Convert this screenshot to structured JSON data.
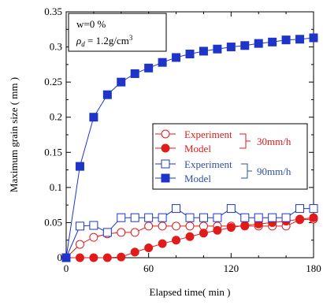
{
  "chart_data": {
    "type": "line",
    "xlabel": "Elapsed time( min )",
    "ylabel": "Maximum grain size ( mm )",
    "xlim": [
      0,
      180
    ],
    "ylim": [
      0,
      0.35
    ],
    "xticks": [
      0,
      60,
      120,
      180
    ],
    "yticks": [
      0,
      0.05,
      0.1,
      0.15,
      0.2,
      0.25,
      0.3,
      0.35
    ],
    "xtick_labels": [
      "0",
      "60",
      "120",
      "180"
    ],
    "ytick_labels": [
      "0",
      "0.05",
      "0.1",
      "0.15",
      "0.2",
      "0.25",
      "0.3",
      "0.35"
    ],
    "grid": false,
    "legend_position": "right-center",
    "annotation": {
      "line1": "w=0 %",
      "line2_symbol": "ρ",
      "line2_sub": "d",
      "line2_value": " = 1.2g/cm",
      "line2_sup": "3"
    },
    "groups": [
      {
        "label": "30mm/h",
        "color": "#e11a1a"
      },
      {
        "label": "90mm/h",
        "color": "#2e4fa6"
      }
    ],
    "series": [
      {
        "name": "Experiment",
        "group": 0,
        "color": "#e11a1a",
        "marker": "circle",
        "filled": false,
        "x": [
          0,
          10,
          20,
          30,
          40,
          50,
          60,
          70,
          80,
          90,
          100,
          110,
          120,
          130,
          140,
          150,
          160,
          170,
          180
        ],
        "y": [
          0,
          0.019,
          0.029,
          0.034,
          0.036,
          0.036,
          0.045,
          0.045,
          0.045,
          0.045,
          0.045,
          0.045,
          0.045,
          0.045,
          0.045,
          0.045,
          0.045,
          0.054,
          0.055
        ]
      },
      {
        "name": "Model",
        "group": 0,
        "color": "#e11a1a",
        "marker": "circle",
        "filled": true,
        "x": [
          0,
          10,
          20,
          30,
          40,
          50,
          60,
          70,
          80,
          90,
          100,
          110,
          120,
          130,
          140,
          150,
          160,
          170,
          180
        ],
        "y": [
          0,
          0,
          0,
          0,
          0.001,
          0.008,
          0.014,
          0.02,
          0.025,
          0.03,
          0.035,
          0.039,
          0.043,
          0.046,
          0.048,
          0.05,
          0.052,
          0.055,
          0.057
        ]
      },
      {
        "name": "Experiment",
        "group": 1,
        "color": "#1f35c9",
        "marker": "square",
        "filled": false,
        "x": [
          0,
          10,
          20,
          30,
          40,
          50,
          60,
          70,
          80,
          90,
          100,
          110,
          120,
          130,
          140,
          150,
          160,
          170,
          180
        ],
        "y": [
          0,
          0.045,
          0.046,
          0.036,
          0.057,
          0.057,
          0.057,
          0.057,
          0.07,
          0.057,
          0.057,
          0.057,
          0.07,
          0.057,
          0.057,
          0.057,
          0.057,
          0.07,
          0.07
        ]
      },
      {
        "name": "Model",
        "group": 1,
        "color": "#1f35c9",
        "marker": "square",
        "filled": true,
        "x": [
          0,
          10,
          20,
          30,
          40,
          50,
          60,
          70,
          80,
          90,
          100,
          110,
          120,
          130,
          140,
          150,
          160,
          170,
          180
        ],
        "y": [
          0,
          0.13,
          0.2,
          0.232,
          0.25,
          0.262,
          0.27,
          0.278,
          0.285,
          0.29,
          0.294,
          0.297,
          0.3,
          0.302,
          0.305,
          0.307,
          0.31,
          0.311,
          0.313
        ]
      }
    ]
  }
}
